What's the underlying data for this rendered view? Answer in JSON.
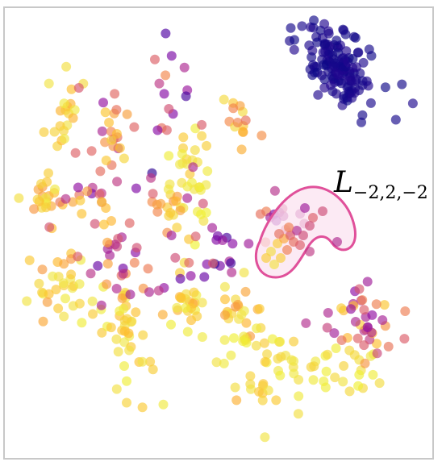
{
  "chart_data": {
    "type": "scatter",
    "title": "",
    "xlabel": "",
    "ylabel": "",
    "xlim": [
      0,
      100
    ],
    "ylim": [
      0,
      100
    ],
    "grid": false,
    "axes_visible": false,
    "colormap": "plasma",
    "point_opacity": 0.65,
    "annotation": {
      "label_main": "L",
      "label_subscript": "−2,2,−2",
      "region_stroke": "#e0509a",
      "region_fill": "#fbe3f0"
    },
    "clusters": [
      {
        "center": [
          79,
          87
        ],
        "spread": [
          4.5,
          4
        ],
        "n": 140,
        "color": 0.02,
        "color_jitter": 0.02,
        "elongate": [
          1,
          -0.55
        ]
      },
      {
        "center": [
          43,
          65
        ],
        "spread": [
          2,
          5
        ],
        "n": 18,
        "color": 0.85,
        "color_jitter": 0.08
      },
      {
        "center": [
          46,
          56
        ],
        "spread": [
          3,
          5
        ],
        "n": 14,
        "color": 0.9,
        "color_jitter": 0.06
      },
      {
        "center": [
          13,
          75
        ],
        "spread": [
          2,
          4
        ],
        "n": 20,
        "color": 0.82,
        "color_jitter": 0.1
      },
      {
        "center": [
          8,
          58
        ],
        "spread": [
          3,
          4
        ],
        "n": 22,
        "color": 0.78,
        "color_jitter": 0.12
      },
      {
        "center": [
          12,
          38
        ],
        "spread": [
          3,
          4
        ],
        "n": 26,
        "color": 0.8,
        "color_jitter": 0.12
      },
      {
        "center": [
          26,
          29
        ],
        "spread": [
          4,
          4
        ],
        "n": 30,
        "color": 0.84,
        "color_jitter": 0.1
      },
      {
        "center": [
          55,
          73
        ],
        "spread": [
          2,
          3
        ],
        "n": 14,
        "color": 0.7,
        "color_jitter": 0.15
      },
      {
        "center": [
          38,
          55
        ],
        "spread": [
          3,
          3
        ],
        "n": 18,
        "color": 0.75,
        "color_jitter": 0.15
      },
      {
        "center": [
          43,
          34
        ],
        "spread": [
          2,
          4
        ],
        "n": 20,
        "color": 0.82,
        "color_jitter": 0.1
      },
      {
        "center": [
          54,
          32
        ],
        "spread": [
          3,
          4
        ],
        "n": 22,
        "color": 0.78,
        "color_jitter": 0.12
      },
      {
        "center": [
          62,
          22
        ],
        "spread": [
          5,
          4
        ],
        "n": 28,
        "color": 0.86,
        "color_jitter": 0.08
      },
      {
        "center": [
          77,
          18
        ],
        "spread": [
          6,
          3
        ],
        "n": 30,
        "color": 0.88,
        "color_jitter": 0.06
      },
      {
        "center": [
          84,
          29
        ],
        "spread": [
          5,
          4
        ],
        "n": 40,
        "color": 0.55,
        "color_jitter": 0.3
      },
      {
        "center": [
          66,
          52
        ],
        "spread": [
          3,
          3
        ],
        "n": 14,
        "color": 0.4,
        "color_jitter": 0.2
      },
      {
        "center": [
          24,
          72
        ],
        "spread": [
          4,
          6
        ],
        "n": 26,
        "color": 0.55,
        "color_jitter": 0.3
      },
      {
        "center": [
          30,
          42
        ],
        "spread": [
          5,
          5
        ],
        "n": 30,
        "color": 0.45,
        "color_jitter": 0.3
      },
      {
        "center": [
          20,
          55
        ],
        "spread": [
          5,
          5
        ],
        "n": 24,
        "color": 0.5,
        "color_jitter": 0.3
      },
      {
        "center": [
          48,
          44
        ],
        "spread": [
          6,
          6
        ],
        "n": 22,
        "color": 0.3,
        "color_jitter": 0.25
      },
      {
        "center": [
          30,
          18
        ],
        "spread": [
          4,
          4
        ],
        "n": 14,
        "color": 0.85,
        "color_jitter": 0.08
      },
      {
        "center": [
          36,
          78
        ],
        "spread": [
          4,
          8
        ],
        "n": 18,
        "color": 0.35,
        "color_jitter": 0.3
      },
      {
        "center": [
          62,
          12
        ],
        "spread": [
          6,
          4
        ],
        "n": 14,
        "color": 0.8,
        "color_jitter": 0.1
      }
    ]
  }
}
